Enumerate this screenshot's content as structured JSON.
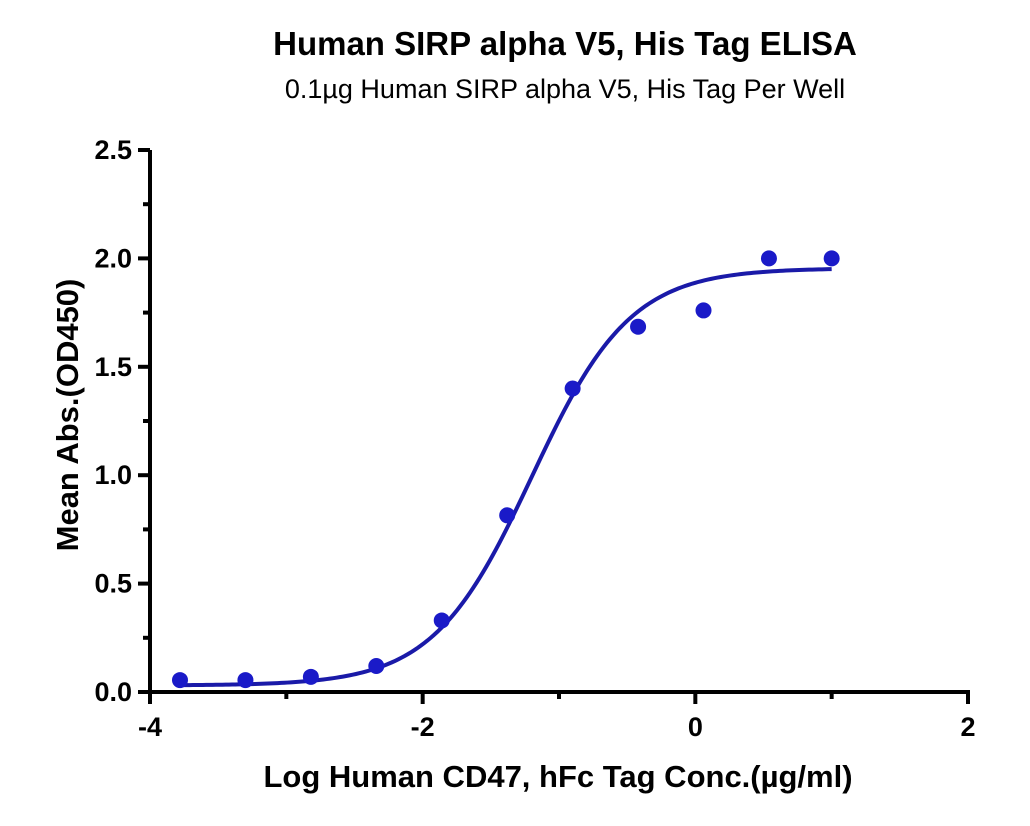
{
  "chart_data": {
    "type": "scatter",
    "title": "Human SIRP alpha V5, His Tag ELISA",
    "subtitle": "0.1µg Human SIRP alpha V5, His Tag Per Well",
    "xlabel": "Log Human CD47, hFc Tag Conc.(µg/ml)",
    "ylabel": "Mean Abs.(OD450)",
    "xlim": [
      -4,
      2
    ],
    "ylim": [
      0,
      2.5
    ],
    "x_ticks": [
      -4,
      -2,
      0,
      2
    ],
    "x_tick_labels": [
      "-4",
      "-2",
      "0",
      "2"
    ],
    "y_ticks": [
      0,
      0.5,
      1,
      1.5,
      2,
      2.5
    ],
    "y_tick_labels": [
      "0.0",
      "0.5",
      "1.0",
      "1.5",
      "2.0",
      "2.5"
    ],
    "grid": false,
    "series": [
      {
        "x": [
          -3.78,
          -3.3,
          -2.82,
          -2.34,
          -1.86,
          -1.38,
          -0.9,
          -0.42,
          0.06,
          0.54,
          1.0
        ],
        "y": [
          0.055,
          0.055,
          0.07,
          0.12,
          0.33,
          0.815,
          1.4,
          1.685,
          1.76,
          2.0,
          2.0
        ],
        "color": "#1a1ac8"
      }
    ],
    "fit_curve": {
      "model": "4PL",
      "bottom": 0.03,
      "top": 1.955,
      "log_ec50": -1.2,
      "hill_slope": 1.2,
      "x_range": [
        -3.78,
        1.0
      ],
      "color": "#1a1aa8"
    }
  }
}
